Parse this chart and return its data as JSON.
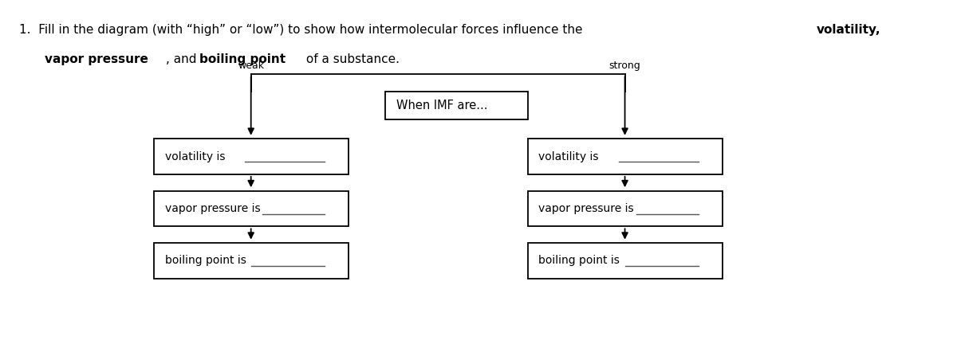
{
  "center_box_text": "When IMF are...",
  "weak_label": "weak",
  "strong_label": "strong",
  "left_box_labels": [
    "volatility is",
    "vapor pressure is",
    "boiling point is"
  ],
  "right_box_labels": [
    "volatility is",
    "vapor pressure is",
    "boiling point is"
  ],
  "bg_color": "#ffffff",
  "box_edge_color": "#000000",
  "text_color": "#000000",
  "arrow_color": "#000000",
  "line_color": "#000000",
  "title_normal1": "1.  Fill in the diagram (with “high” or “low”) to show how intermolecular forces influence the ",
  "title_bold1": "volatility,",
  "title_line2_bold1": "vapor pressure",
  "title_line2_mid": ", and ",
  "title_line2_bold2": "boiling point",
  "title_line2_end": " of a substance."
}
